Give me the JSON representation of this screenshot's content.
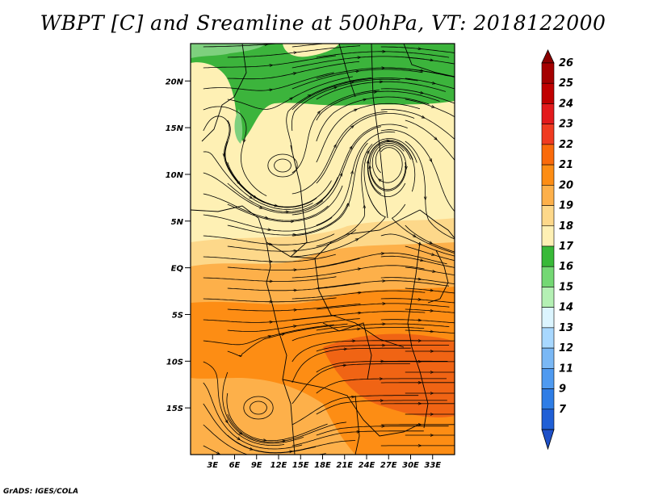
{
  "title": "WBPT [C] and Sreamline at 500hPa, VT: 2018122000",
  "credit": "GrADS: IGES/COLA",
  "map": {
    "lon_range": [
      0,
      36
    ],
    "lat_range": [
      -20,
      24
    ],
    "lon_ticks": [
      {
        "value": 3,
        "label": "3E"
      },
      {
        "value": 6,
        "label": "6E"
      },
      {
        "value": 9,
        "label": "9E"
      },
      {
        "value": 12,
        "label": "12E"
      },
      {
        "value": 15,
        "label": "15E"
      },
      {
        "value": 18,
        "label": "18E"
      },
      {
        "value": 21,
        "label": "21E"
      },
      {
        "value": 24,
        "label": "24E"
      },
      {
        "value": 27,
        "label": "27E"
      },
      {
        "value": 30,
        "label": "30E"
      },
      {
        "value": 33,
        "label": "33E"
      }
    ],
    "lat_ticks": [
      {
        "value": 20,
        "label": "20N"
      },
      {
        "value": 15,
        "label": "15N"
      },
      {
        "value": 10,
        "label": "10N"
      },
      {
        "value": 5,
        "label": "5N"
      },
      {
        "value": 0,
        "label": "EQ"
      },
      {
        "value": -5,
        "label": "5S"
      },
      {
        "value": -10,
        "label": "10S"
      },
      {
        "value": -15,
        "label": "15S"
      }
    ]
  },
  "colorbar": {
    "levels": [
      {
        "label": "26",
        "color": "#a50000"
      },
      {
        "label": "25",
        "color": "#c00000"
      },
      {
        "label": "24",
        "color": "#e31a1c"
      },
      {
        "label": "23",
        "color": "#f03b20"
      },
      {
        "label": "22",
        "color": "#fa6a0a"
      },
      {
        "label": "21",
        "color": "#fd8d14"
      },
      {
        "label": "20",
        "color": "#fdb04a"
      },
      {
        "label": "19",
        "color": "#fdd88a"
      },
      {
        "label": "18",
        "color": "#fef0b4"
      },
      {
        "label": "17",
        "color": "#38b938"
      },
      {
        "label": "16",
        "color": "#74d874"
      },
      {
        "label": "15",
        "color": "#b4f0b4"
      },
      {
        "label": "14",
        "color": "#dcf5ff"
      },
      {
        "label": "13",
        "color": "#a8d8ff"
      },
      {
        "label": "12",
        "color": "#7ab8f5"
      },
      {
        "label": "11",
        "color": "#4f9af0"
      },
      {
        "label": "9",
        "color": "#2e7de6"
      },
      {
        "label": "7",
        "color": "#1f5fd6"
      }
    ],
    "top_color": "#8b0000",
    "bottom_color": "#1e50c8"
  },
  "colors": {
    "green": "#3cb43c",
    "light_green": "#7ed07e",
    "cream": "#fef0b4",
    "light_orange": "#fdd88a",
    "orange": "#fdb04a",
    "deep_orange": "#fd8d14",
    "red_orange": "#f06414"
  }
}
